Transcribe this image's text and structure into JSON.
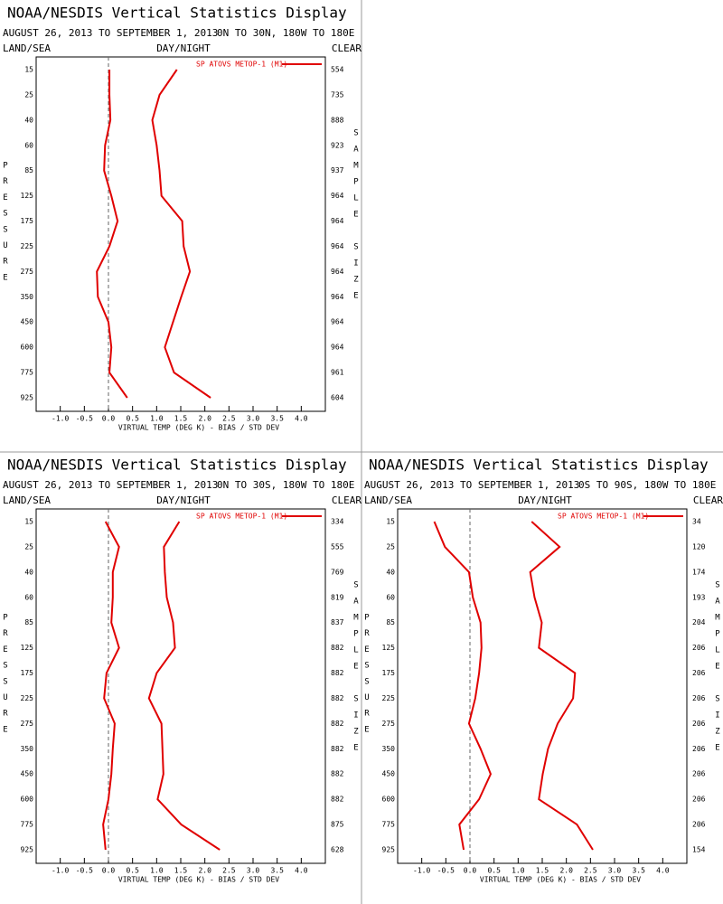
{
  "chart_data": [
    {
      "type": "line",
      "title": "NOAA/NESDIS Vertical Statistics Display",
      "subtitle": "AUGUST 26, 2013 TO SEPTEMBER 1, 2013",
      "region": "0N TO 30N, 180W TO 180E",
      "land_sea": "LAND/SEA",
      "day_night": "DAY/NIGHT",
      "clear": "CLEAR",
      "ylabel": "PRESSURE",
      "y2label": "SAMPLE SIZE",
      "xlabel": "VIRTUAL TEMP (DEG K) - BIAS / STD DEV",
      "categories": [
        15,
        25,
        40,
        60,
        85,
        125,
        175,
        225,
        275,
        350,
        450,
        600,
        775,
        925
      ],
      "sample_sizes": [
        554,
        735,
        888,
        923,
        937,
        964,
        964,
        964,
        964,
        964,
        964,
        964,
        961,
        604
      ],
      "xlim": [
        -1.5,
        4.5
      ],
      "xticks": [
        {
          "value": -1,
          "label": "-1.0"
        },
        -0.5,
        {
          "value": 0,
          "label": "0.0"
        },
        0.5,
        {
          "value": 1,
          "label": "1.0"
        },
        1.5,
        {
          "value": 2,
          "label": "2.0"
        },
        2.5,
        {
          "value": 3,
          "label": "3.0"
        },
        3.5,
        {
          "value": 4,
          "label": "4.0"
        }
      ],
      "series": [
        {
          "name": "SP ATOVS METOP-1 (M1)",
          "color": "#e00000",
          "values": [
            0.02,
            0.02,
            0.04,
            -0.07,
            -0.09,
            0.06,
            0.19,
            0.02,
            -0.24,
            -0.22,
            0.0,
            0.06,
            0.02,
            0.39
          ],
          "std_dev": [
            1.42,
            1.06,
            0.91,
            1.0,
            1.06,
            1.1,
            1.53,
            1.56,
            1.69,
            1.51,
            1.34,
            1.17,
            1.36,
            2.12
          ]
        }
      ]
    },
    {
      "type": "line",
      "title": "NOAA/NESDIS Vertical Statistics Display",
      "subtitle": "AUGUST 26, 2013 TO SEPTEMBER 1, 2013",
      "region": "0N TO 30S, 180W TO 180E",
      "land_sea": "LAND/SEA",
      "day_night": "DAY/NIGHT",
      "clear": "CLEAR",
      "ylabel": "PRESSURE",
      "y2label": "SAMPLE SIZE",
      "xlabel": "VIRTUAL TEMP (DEG K) - BIAS / STD DEV",
      "categories": [
        15,
        25,
        40,
        60,
        85,
        125,
        175,
        225,
        275,
        350,
        450,
        600,
        775,
        925
      ],
      "sample_sizes": [
        334,
        555,
        769,
        819,
        837,
        882,
        882,
        882,
        882,
        882,
        882,
        882,
        875,
        628
      ],
      "xlim": [
        -1.5,
        4.5
      ],
      "xticks": [
        {
          "value": -1,
          "label": "-1.0"
        },
        -0.5,
        {
          "value": 0,
          "label": "0.0"
        },
        0.5,
        {
          "value": 1,
          "label": "1.0"
        },
        1.5,
        {
          "value": 2,
          "label": "2.0"
        },
        2.5,
        {
          "value": 3,
          "label": "3.0"
        },
        3.5,
        {
          "value": 4,
          "label": "4.0"
        }
      ],
      "series": [
        {
          "name": "SP ATOVS METOP-1 (M1)",
          "color": "#e00000",
          "values": [
            -0.06,
            0.22,
            0.09,
            0.09,
            0.06,
            0.22,
            -0.04,
            -0.09,
            0.13,
            0.09,
            0.06,
            0.0,
            -0.11,
            -0.06
          ],
          "std_dev": [
            1.47,
            1.15,
            1.17,
            1.21,
            1.34,
            1.38,
            1.0,
            0.84,
            1.1,
            1.12,
            1.14,
            1.02,
            1.51,
            2.31
          ]
        }
      ]
    },
    {
      "type": "line",
      "title": "NOAA/NESDIS Vertical Statistics Display",
      "subtitle": "AUGUST 26, 2013 TO SEPTEMBER 1, 2013",
      "region": "0S TO 90S, 180W TO 180E",
      "land_sea": "LAND/SEA",
      "day_night": "DAY/NIGHT",
      "clear": "CLEAR",
      "ylabel": "PRESSURE",
      "y2label": "SAMPLE SIZE",
      "xlabel": "VIRTUAL TEMP (DEG K) - BIAS / STD DEV",
      "categories": [
        15,
        25,
        40,
        60,
        85,
        125,
        175,
        225,
        275,
        350,
        450,
        600,
        775,
        925
      ],
      "sample_sizes": [
        34,
        120,
        174,
        193,
        204,
        206,
        206,
        206,
        206,
        206,
        206,
        206,
        206,
        154
      ],
      "xlim": [
        -1.5,
        4.5
      ],
      "xticks": [
        {
          "value": -1,
          "label": "-1.0"
        },
        -0.5,
        {
          "value": 0,
          "label": "0.0"
        },
        0.5,
        {
          "value": 1,
          "label": "1.0"
        },
        1.5,
        {
          "value": 2,
          "label": "2.0"
        },
        2.5,
        {
          "value": 3,
          "label": "3.0"
        },
        3.5,
        {
          "value": 4,
          "label": "4.0"
        }
      ],
      "series": [
        {
          "name": "SP ATOVS METOP-1 (M1)",
          "color": "#e00000",
          "values": [
            -0.74,
            -0.52,
            -0.02,
            0.06,
            0.22,
            0.24,
            0.19,
            0.11,
            -0.02,
            0.22,
            0.43,
            0.19,
            -0.22,
            -0.13
          ],
          "std_dev": [
            1.28,
            1.86,
            1.25,
            1.34,
            1.49,
            1.43,
            2.18,
            2.14,
            1.82,
            1.62,
            1.51,
            1.43,
            2.22,
            2.55
          ]
        }
      ]
    }
  ]
}
